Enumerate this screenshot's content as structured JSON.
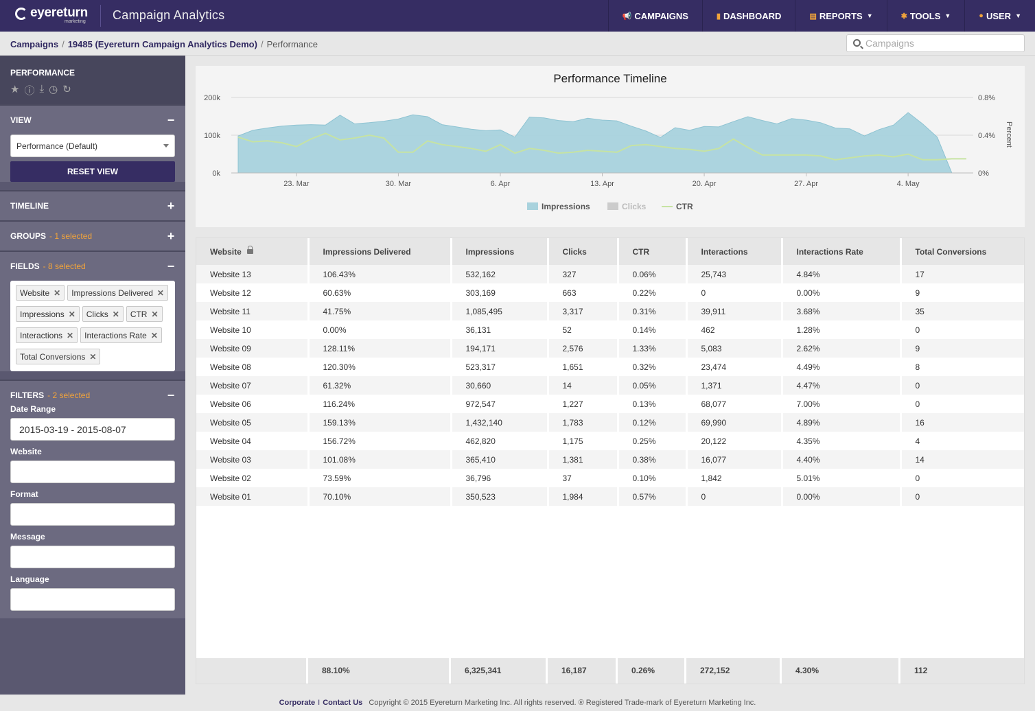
{
  "app": {
    "logo_text": "eyereturn",
    "logo_sub": "marketing",
    "title": "Campaign Analytics"
  },
  "nav": {
    "items": [
      {
        "label": "CAMPAIGNS",
        "icon": "megaphone-icon",
        "glyph": "📢",
        "dropdown": false
      },
      {
        "label": "DASHBOARD",
        "icon": "bar-chart-icon",
        "glyph": "▮",
        "dropdown": false
      },
      {
        "label": "REPORTS",
        "icon": "document-icon",
        "glyph": "▤",
        "dropdown": true
      },
      {
        "label": "TOOLS",
        "icon": "gear-icon",
        "glyph": "✱",
        "dropdown": true
      },
      {
        "label": "USER",
        "icon": "user-icon",
        "glyph": "●",
        "dropdown": true
      }
    ]
  },
  "breadcrumb": {
    "campaigns": "Campaigns",
    "campaign": "19485 (Eyereturn Campaign Analytics Demo)",
    "current": "Performance"
  },
  "search": {
    "placeholder": "Campaigns",
    "value": ""
  },
  "sidebar": {
    "title": "PERFORMANCE",
    "view": {
      "header": "VIEW",
      "selected": "Performance (Default)",
      "reset_label": "RESET VIEW"
    },
    "timeline": {
      "header": "TIMELINE"
    },
    "groups": {
      "header": "GROUPS",
      "count": "- 1 selected"
    },
    "fields": {
      "header": "FIELDS",
      "count": "- 8 selected",
      "tags": [
        "Website",
        "Impressions Delivered",
        "Impressions",
        "Clicks",
        "CTR",
        "Interactions",
        "Interactions Rate",
        "Total Conversions"
      ]
    },
    "filters": {
      "header": "FILTERS",
      "count": "- 2 selected",
      "date_range_label": "Date Range",
      "date_range_value": "2015-03-19 - 2015-08-07",
      "website_label": "Website",
      "format_label": "Format",
      "message_label": "Message",
      "language_label": "Language"
    }
  },
  "chart_data": {
    "type": "area",
    "title": "Performance Timeline",
    "ylabel": "",
    "y2label": "Percent",
    "y_ticks": [
      "0k",
      "100k",
      "200k"
    ],
    "y2_ticks": [
      "0%",
      "0.4%",
      "0.8%"
    ],
    "ylim": [
      0,
      200000
    ],
    "y2lim": [
      0,
      0.8
    ],
    "x_ticks": [
      "23. Mar",
      "30. Mar",
      "6. Apr",
      "13. Apr",
      "20. Apr",
      "27. Apr",
      "4. May"
    ],
    "x_tick_days": [
      4,
      11,
      18,
      25,
      32,
      39,
      46
    ],
    "x_days": [
      0,
      1,
      2,
      3,
      4,
      5,
      6,
      7,
      8,
      9,
      10,
      11,
      12,
      13,
      14,
      15,
      16,
      17,
      18,
      19,
      20,
      21,
      22,
      23,
      24,
      25,
      26,
      27,
      28,
      29,
      30,
      31,
      32,
      33,
      34,
      35,
      36,
      37,
      38,
      39,
      40,
      41,
      42,
      43,
      44,
      45,
      46,
      47,
      48,
      49,
      50
    ],
    "legend": [
      "Impressions",
      "Clicks",
      "CTR"
    ],
    "legend_colors": [
      "#a8d2dd",
      "#cccccc",
      "#c6e3a3"
    ],
    "legend_text_colors": [
      "#555555",
      "#bbbbbb",
      "#555555"
    ],
    "series": [
      {
        "name": "Impressions",
        "axis": "left",
        "color": "#a8d2dd",
        "values": [
          98000,
          113000,
          119000,
          124000,
          127000,
          128000,
          127000,
          153000,
          130000,
          133000,
          137000,
          143000,
          154000,
          149000,
          128000,
          122000,
          116000,
          112000,
          114000,
          95000,
          148000,
          146000,
          139000,
          136000,
          145000,
          140000,
          138000,
          124000,
          111000,
          94000,
          120000,
          113000,
          123000,
          122000,
          136000,
          149000,
          139000,
          130000,
          144000,
          140000,
          133000,
          119000,
          117000,
          98000,
          115000,
          127000,
          160000,
          130000,
          95000,
          0,
          0
        ]
      },
      {
        "name": "CTR",
        "axis": "right",
        "color": "#c6e3a3",
        "values": [
          0.38,
          0.33,
          0.34,
          0.32,
          0.28,
          0.36,
          0.42,
          0.35,
          0.37,
          0.4,
          0.37,
          0.22,
          0.22,
          0.34,
          0.3,
          0.28,
          0.26,
          0.23,
          0.3,
          0.21,
          0.26,
          0.24,
          0.21,
          0.22,
          0.24,
          0.23,
          0.22,
          0.29,
          0.3,
          0.28,
          0.26,
          0.25,
          0.23,
          0.26,
          0.36,
          0.27,
          0.19,
          0.19,
          0.19,
          0.19,
          0.18,
          0.14,
          0.16,
          0.18,
          0.19,
          0.17,
          0.2,
          0.14,
          0.14,
          0.15,
          0.15
        ]
      }
    ]
  },
  "table": {
    "columns": [
      "Website",
      "Impressions Delivered",
      "Impressions",
      "Clicks",
      "CTR",
      "Interactions",
      "Interactions Rate",
      "Total Conversions"
    ],
    "rows": [
      [
        "Website 13",
        "106.43%",
        "532,162",
        "327",
        "0.06%",
        "25,743",
        "4.84%",
        "17"
      ],
      [
        "Website 12",
        "60.63%",
        "303,169",
        "663",
        "0.22%",
        "0",
        "0.00%",
        "9"
      ],
      [
        "Website 11",
        "41.75%",
        "1,085,495",
        "3,317",
        "0.31%",
        "39,911",
        "3.68%",
        "35"
      ],
      [
        "Website 10",
        "0.00%",
        "36,131",
        "52",
        "0.14%",
        "462",
        "1.28%",
        "0"
      ],
      [
        "Website 09",
        "128.11%",
        "194,171",
        "2,576",
        "1.33%",
        "5,083",
        "2.62%",
        "9"
      ],
      [
        "Website 08",
        "120.30%",
        "523,317",
        "1,651",
        "0.32%",
        "23,474",
        "4.49%",
        "8"
      ],
      [
        "Website 07",
        "61.32%",
        "30,660",
        "14",
        "0.05%",
        "1,371",
        "4.47%",
        "0"
      ],
      [
        "Website 06",
        "116.24%",
        "972,547",
        "1,227",
        "0.13%",
        "68,077",
        "7.00%",
        "0"
      ],
      [
        "Website 05",
        "159.13%",
        "1,432,140",
        "1,783",
        "0.12%",
        "69,990",
        "4.89%",
        "16"
      ],
      [
        "Website 04",
        "156.72%",
        "462,820",
        "1,175",
        "0.25%",
        "20,122",
        "4.35%",
        "4"
      ],
      [
        "Website 03",
        "101.08%",
        "365,410",
        "1,381",
        "0.38%",
        "16,077",
        "4.40%",
        "14"
      ],
      [
        "Website 02",
        "73.59%",
        "36,796",
        "37",
        "0.10%",
        "1,842",
        "5.01%",
        "0"
      ],
      [
        "Website 01",
        "70.10%",
        "350,523",
        "1,984",
        "0.57%",
        "0",
        "0.00%",
        "0"
      ]
    ],
    "totals": [
      "",
      "88.10%",
      "6,325,341",
      "16,187",
      "0.26%",
      "272,152",
      "4.30%",
      "112"
    ]
  },
  "footer": {
    "corporate": "Corporate",
    "separator": "I",
    "contact": "Contact Us",
    "copyright": "Copyright © 2015 Eyereturn Marketing Inc. All rights reserved. ® Registered Trade-mark of Eyereturn Marketing Inc."
  },
  "colors": {
    "brand": "#362d63",
    "accent": "#f2a43a",
    "sidebar": "#6c6a80"
  }
}
